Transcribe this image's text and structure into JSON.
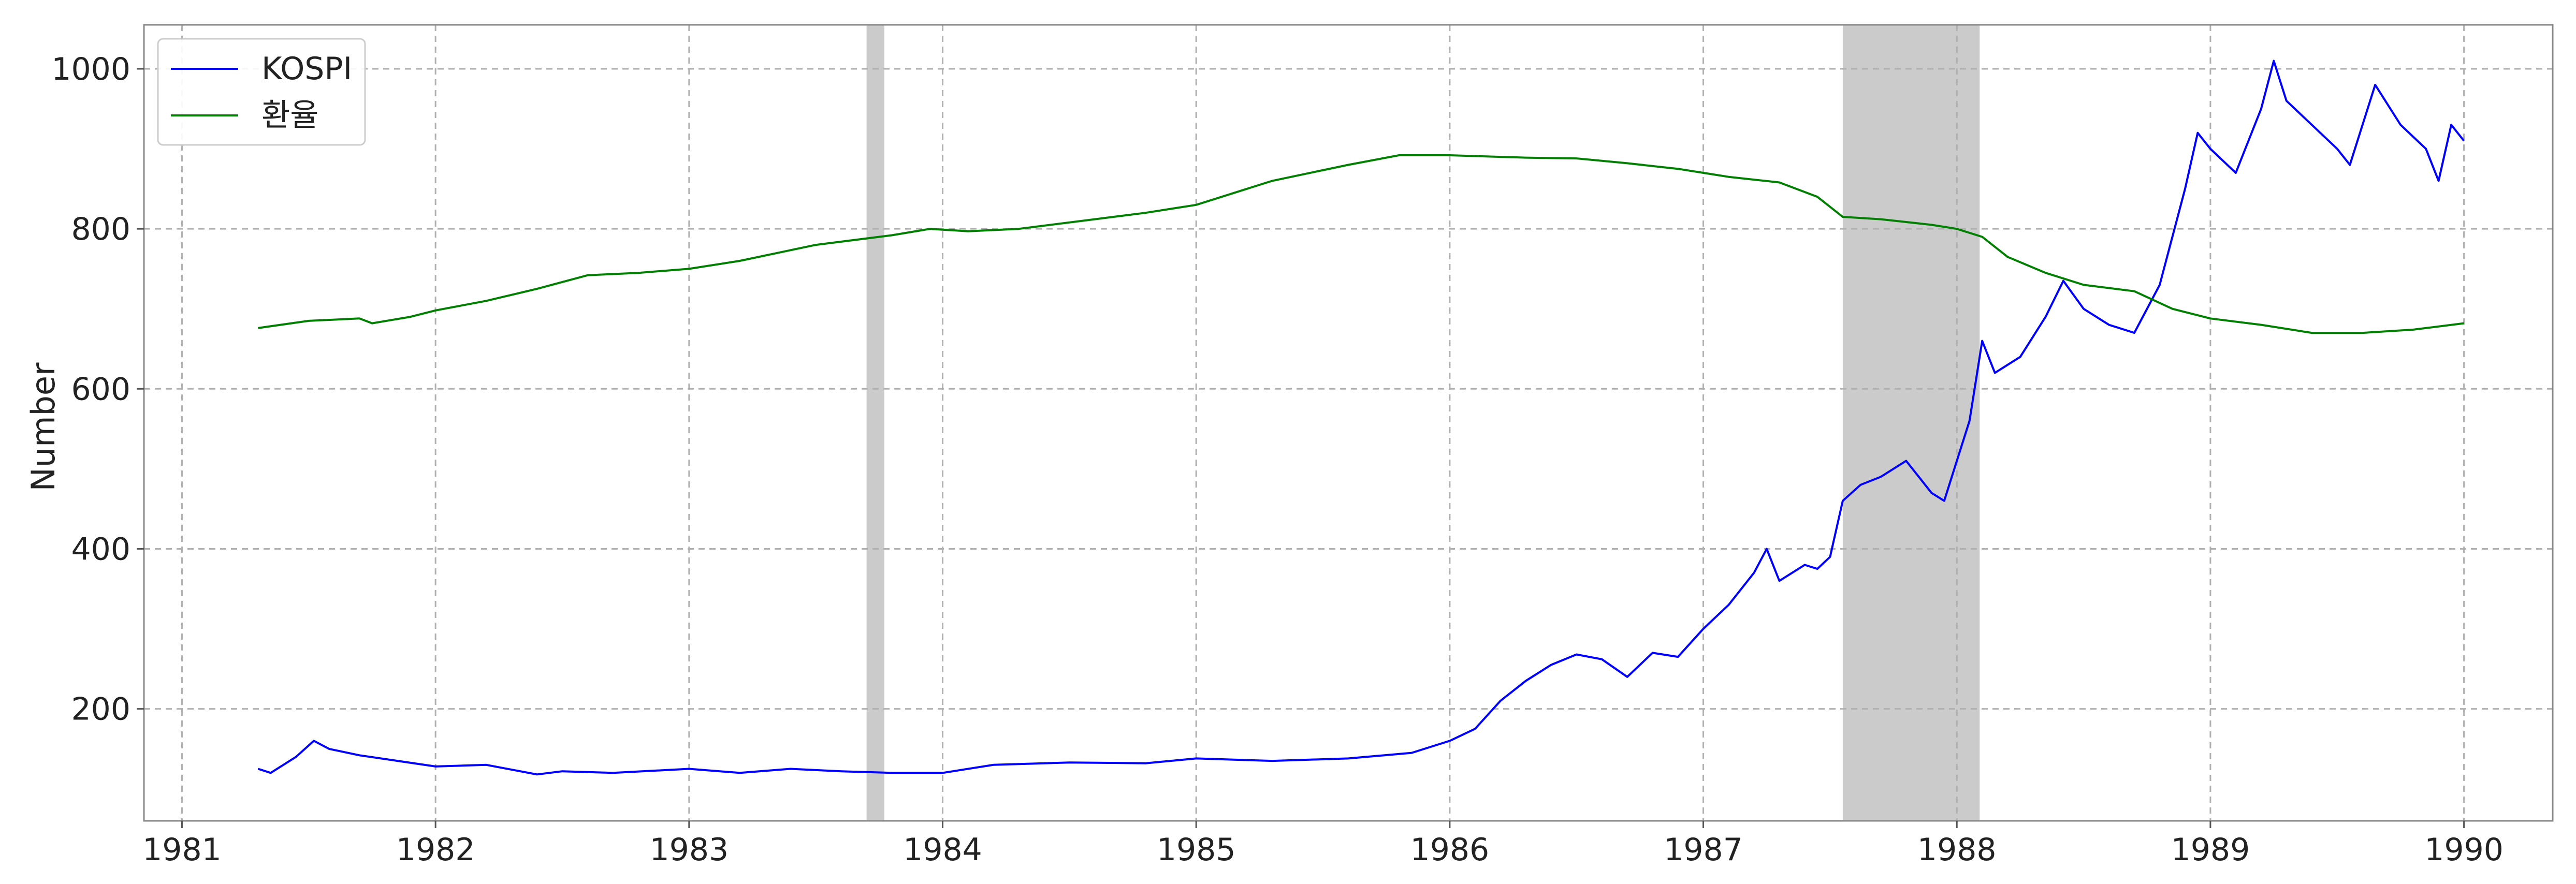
{
  "chart_data": {
    "type": "line",
    "title": "",
    "xlabel": "",
    "ylabel": "Number",
    "xlim": [
      1980.85,
      1990.35
    ],
    "ylim": [
      60,
      1055
    ],
    "grid": true,
    "legend_position": "top-left",
    "x_ticks": [
      1981,
      1982,
      1983,
      1984,
      1985,
      1986,
      1987,
      1988,
      1989,
      1990
    ],
    "x_tick_labels": [
      "1981",
      "1982",
      "1983",
      "1984",
      "1985",
      "1986",
      "1987",
      "1988",
      "1989",
      "1990"
    ],
    "y_ticks": [
      200,
      400,
      600,
      800,
      1000
    ],
    "y_tick_labels": [
      "200",
      "400",
      "600",
      "800",
      "1000"
    ],
    "shaded_regions": [
      {
        "start": 1983.7,
        "end": 1983.77
      },
      {
        "start": 1987.55,
        "end": 1988.09
      }
    ],
    "series": [
      {
        "name": "KOSPI",
        "color": "#0000ff",
        "x": [
          1981.3,
          1981.35,
          1981.45,
          1981.52,
          1981.58,
          1981.7,
          1981.85,
          1982.0,
          1982.2,
          1982.4,
          1982.5,
          1982.7,
          1983.0,
          1983.2,
          1983.4,
          1983.6,
          1983.8,
          1984.0,
          1984.2,
          1984.5,
          1984.8,
          1985.0,
          1985.3,
          1985.6,
          1985.85,
          1986.0,
          1986.1,
          1986.2,
          1986.3,
          1986.4,
          1986.5,
          1986.6,
          1986.7,
          1986.8,
          1986.9,
          1987.0,
          1987.1,
          1987.2,
          1987.25,
          1987.3,
          1987.4,
          1987.45,
          1987.5,
          1987.55,
          1987.62,
          1987.7,
          1987.8,
          1987.9,
          1987.95,
          1988.05,
          1988.1,
          1988.15,
          1988.25,
          1988.35,
          1988.42,
          1988.5,
          1988.6,
          1988.7,
          1988.8,
          1988.85,
          1988.9,
          1988.95,
          1989.0,
          1989.1,
          1989.2,
          1989.25,
          1989.3,
          1989.4,
          1989.5,
          1989.55,
          1989.65,
          1989.75,
          1989.85,
          1989.9,
          1989.95,
          1990.0
        ],
        "y": [
          125,
          120,
          140,
          160,
          150,
          142,
          135,
          128,
          130,
          118,
          122,
          120,
          125,
          120,
          125,
          122,
          120,
          120,
          130,
          133,
          132,
          138,
          135,
          138,
          145,
          160,
          175,
          210,
          235,
          255,
          268,
          262,
          240,
          270,
          265,
          300,
          330,
          370,
          400,
          360,
          380,
          375,
          390,
          460,
          480,
          490,
          510,
          470,
          460,
          560,
          660,
          620,
          640,
          690,
          735,
          700,
          680,
          670,
          730,
          790,
          850,
          920,
          900,
          870,
          950,
          1010,
          960,
          930,
          900,
          880,
          980,
          930,
          900,
          860,
          930,
          910
        ]
      },
      {
        "name": "환율",
        "color": "#008000",
        "x": [
          1981.3,
          1981.5,
          1981.7,
          1981.75,
          1981.9,
          1982.0,
          1982.2,
          1982.4,
          1982.6,
          1982.8,
          1983.0,
          1983.2,
          1983.5,
          1983.8,
          1983.95,
          1984.1,
          1984.3,
          1984.6,
          1984.8,
          1985.0,
          1985.3,
          1985.6,
          1985.8,
          1986.0,
          1986.3,
          1986.5,
          1986.7,
          1986.9,
          1987.1,
          1987.3,
          1987.45,
          1987.55,
          1987.7,
          1987.9,
          1988.0,
          1988.1,
          1988.2,
          1988.35,
          1988.5,
          1988.7,
          1988.85,
          1989.0,
          1989.2,
          1989.4,
          1989.6,
          1989.8,
          1990.0
        ],
        "y": [
          676,
          685,
          688,
          682,
          690,
          698,
          710,
          725,
          742,
          745,
          750,
          760,
          780,
          792,
          800,
          797,
          800,
          812,
          820,
          830,
          860,
          880,
          892,
          892,
          889,
          888,
          882,
          875,
          865,
          858,
          840,
          815,
          812,
          805,
          800,
          790,
          765,
          745,
          730,
          722,
          700,
          688,
          680,
          670,
          670,
          674,
          682
        ]
      }
    ]
  }
}
